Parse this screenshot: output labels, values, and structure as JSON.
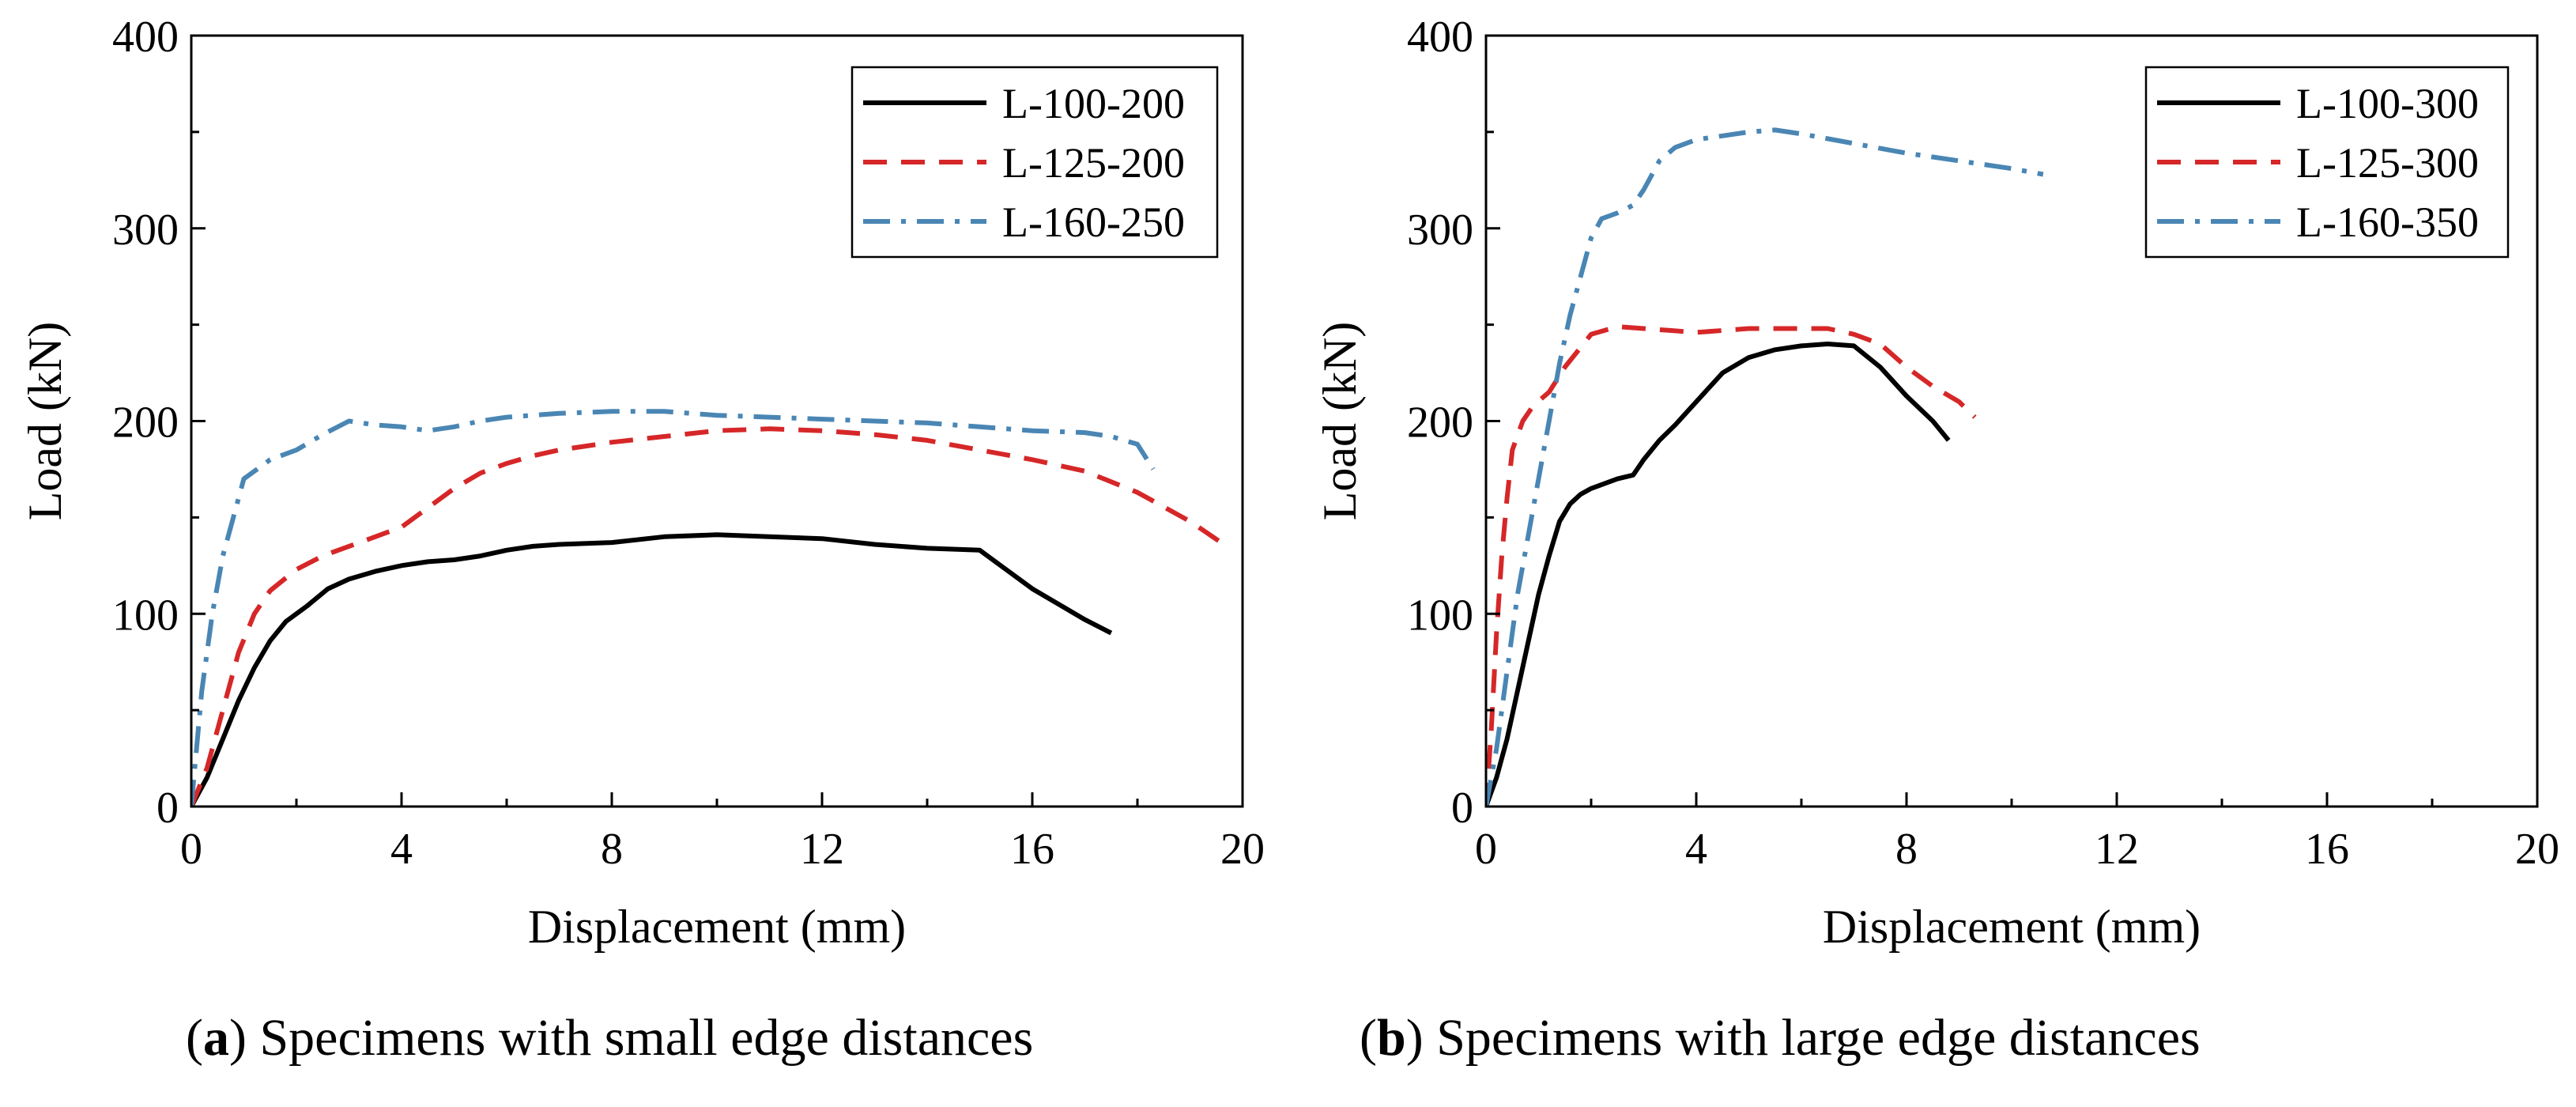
{
  "captions": [
    {
      "open": "(",
      "letter": "a",
      "close": ")",
      "text": "Specimens with small edge distances"
    },
    {
      "open": "(",
      "letter": "b",
      "close": ")",
      "text": "Specimens with large edge distances"
    }
  ],
  "chart_data": [
    {
      "type": "line",
      "title": "",
      "xlabel": "Displacement (mm)",
      "ylabel": "Load (kN)",
      "xlim": [
        0,
        20
      ],
      "ylim": [
        0,
        400
      ],
      "xticks": [
        0,
        4,
        8,
        12,
        16,
        20
      ],
      "yticks": [
        0,
        100,
        200,
        300,
        400
      ],
      "xtick_labels": [
        "0",
        "4",
        "8",
        "12",
        "16",
        "20"
      ],
      "ytick_labels": [
        "0",
        "100",
        "200",
        "300",
        "400"
      ],
      "legend_position": "top-right",
      "series": [
        {
          "name": "L-100-200",
          "color": "#000000",
          "style": "solid",
          "x": [
            0,
            0.3,
            0.6,
            0.9,
            1.2,
            1.5,
            1.8,
            2.2,
            2.6,
            3.0,
            3.5,
            4.0,
            4.5,
            5.0,
            5.5,
            6.0,
            6.5,
            7.0,
            8.0,
            9.0,
            10.0,
            11.0,
            12.0,
            13.0,
            14.0,
            15.0,
            16.0,
            17.0,
            17.5
          ],
          "y": [
            0,
            15,
            35,
            55,
            72,
            86,
            96,
            104,
            113,
            118,
            122,
            125,
            127,
            128,
            130,
            133,
            135,
            136,
            137,
            140,
            141,
            140,
            139,
            136,
            134,
            133,
            113,
            97,
            90
          ]
        },
        {
          "name": "L-125-200",
          "color": "#d62728",
          "style": "dashed",
          "x": [
            0,
            0.3,
            0.6,
            0.9,
            1.2,
            1.5,
            2.0,
            2.5,
            3.0,
            3.5,
            4.0,
            4.5,
            5.0,
            5.5,
            6.0,
            6.5,
            7.0,
            8.0,
            9.0,
            10.0,
            11.0,
            12.0,
            13.0,
            14.0,
            15.0,
            16.0,
            17.0,
            18.0,
            19.0,
            19.7
          ],
          "y": [
            0,
            20,
            50,
            80,
            100,
            112,
            123,
            130,
            135,
            140,
            145,
            155,
            165,
            173,
            178,
            182,
            185,
            189,
            192,
            195,
            196,
            195,
            193,
            190,
            185,
            180,
            174,
            163,
            148,
            135
          ]
        },
        {
          "name": "L-160-250",
          "color": "#4a86b4",
          "style": "dashdot",
          "x": [
            0,
            0.2,
            0.4,
            0.6,
            0.8,
            1.0,
            1.5,
            2.0,
            2.5,
            3.0,
            3.5,
            4.0,
            4.5,
            5.0,
            5.5,
            6.0,
            7.0,
            8.0,
            9.0,
            10.0,
            11.0,
            12.0,
            13.0,
            14.0,
            15.0,
            16.0,
            17.0,
            17.5,
            18.0,
            18.3
          ],
          "y": [
            0,
            60,
            100,
            130,
            150,
            170,
            180,
            185,
            193,
            200,
            198,
            197,
            195,
            197,
            200,
            202,
            204,
            205,
            205,
            203,
            202,
            201,
            200,
            199,
            197,
            195,
            194,
            192,
            188,
            175
          ]
        }
      ]
    },
    {
      "type": "line",
      "title": "",
      "xlabel": "Displacement (mm)",
      "ylabel": "Load (kN)",
      "xlim": [
        0,
        20
      ],
      "ylim": [
        0,
        400
      ],
      "xticks": [
        0,
        4,
        8,
        12,
        16,
        20
      ],
      "yticks": [
        0,
        100,
        200,
        300,
        400
      ],
      "xtick_labels": [
        "0",
        "4",
        "8",
        "12",
        "16",
        "20"
      ],
      "ytick_labels": [
        "0",
        "100",
        "200",
        "300",
        "400"
      ],
      "legend_position": "top-right",
      "series": [
        {
          "name": "L-100-300",
          "color": "#000000",
          "style": "solid",
          "x": [
            0,
            0.2,
            0.4,
            0.6,
            0.8,
            1.0,
            1.2,
            1.4,
            1.6,
            1.8,
            2.0,
            2.2,
            2.5,
            2.8,
            3.0,
            3.3,
            3.6,
            4.0,
            4.5,
            5.0,
            5.5,
            6.0,
            6.5,
            7.0,
            7.5,
            8.0,
            8.5,
            8.8
          ],
          "y": [
            0,
            15,
            35,
            60,
            85,
            110,
            130,
            148,
            157,
            162,
            165,
            167,
            170,
            172,
            180,
            190,
            198,
            210,
            225,
            233,
            237,
            239,
            240,
            239,
            228,
            213,
            200,
            190
          ]
        },
        {
          "name": "L-125-300",
          "color": "#d62728",
          "style": "dashed",
          "x": [
            0,
            0.1,
            0.2,
            0.3,
            0.4,
            0.5,
            0.7,
            0.9,
            1.2,
            1.5,
            2.0,
            2.5,
            3.0,
            3.5,
            4.0,
            5.0,
            6.0,
            6.5,
            7.0,
            7.5,
            8.0,
            8.5,
            9.0,
            9.3
          ],
          "y": [
            0,
            40,
            90,
            130,
            160,
            185,
            200,
            208,
            215,
            228,
            245,
            249,
            248,
            247,
            246,
            248,
            248,
            248,
            245,
            240,
            228,
            218,
            210,
            202
          ]
        },
        {
          "name": "L-160-350",
          "color": "#4a86b4",
          "style": "dashdot",
          "x": [
            0,
            0.2,
            0.4,
            0.6,
            0.8,
            1.0,
            1.2,
            1.4,
            1.6,
            1.8,
            2.0,
            2.2,
            2.5,
            2.8,
            3.0,
            3.3,
            3.6,
            4.0,
            4.5,
            5.0,
            5.5,
            6.0,
            7.0,
            8.0,
            9.0,
            10.0,
            10.6
          ],
          "y": [
            0,
            30,
            70,
            110,
            140,
            170,
            200,
            230,
            255,
            275,
            295,
            305,
            308,
            312,
            320,
            335,
            342,
            346,
            348,
            350,
            351,
            349,
            344,
            339,
            335,
            331,
            328
          ]
        }
      ]
    }
  ]
}
